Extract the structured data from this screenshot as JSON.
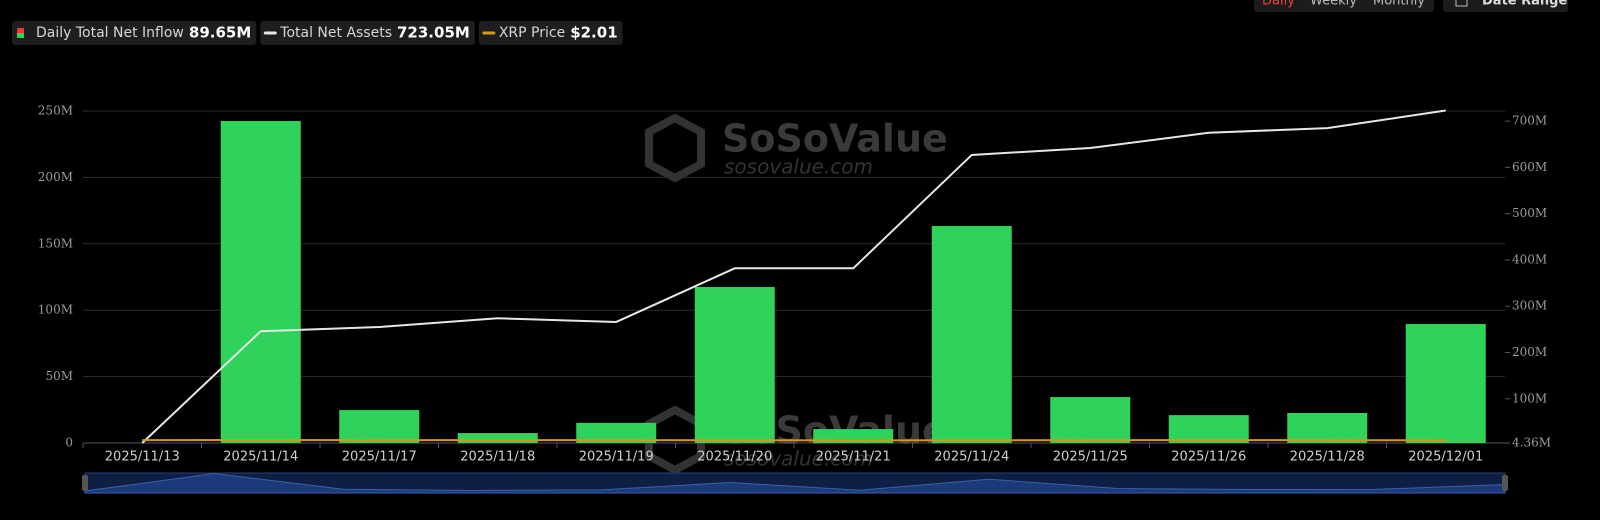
{
  "controls": {
    "periods": [
      "Daily",
      "Weekly",
      "Monthly"
    ],
    "active_period": "Daily",
    "date_range": "Date Range"
  },
  "watermark": {
    "brand": "SoSoValue",
    "url": "sosovalue.com"
  },
  "chart_data": {
    "type": "bar",
    "categories": [
      "2025/11/13",
      "2025/11/14",
      "2025/11/17",
      "2025/11/18",
      "2025/11/19",
      "2025/11/20",
      "2025/11/21",
      "2025/11/24",
      "2025/11/25",
      "2025/11/26",
      "2025/11/28",
      "2025/12/01"
    ],
    "series": [
      {
        "name": "Daily Total Net Inflow",
        "summary": "89.65M",
        "type": "bar",
        "color": "#2fd25a",
        "values": [
          0,
          242.5,
          24.8,
          7.5,
          15.2,
          117.5,
          10.5,
          163.4,
          34.6,
          21,
          22.6,
          89.65
        ]
      },
      {
        "name": "Total Net Assets",
        "summary": "723.05M",
        "type": "line",
        "axis": "y2",
        "color": "#e6e6e6",
        "values": [
          4.36,
          246,
          255,
          274,
          266,
          382,
          382,
          627,
          642,
          675,
          685,
          723.05
        ]
      },
      {
        "name": "XRP Price",
        "summary": "$2.01",
        "type": "line",
        "color": "#d8961a",
        "values": [
          2.2,
          2.3,
          2.15,
          2.2,
          2.2,
          2.1,
          2.0,
          2.05,
          2.2,
          2.2,
          2.15,
          2.01
        ]
      }
    ],
    "ylim": [
      0,
      250
    ],
    "yticks": [
      {
        "value": 0,
        "label": "0"
      },
      {
        "value": 50,
        "label": "50M"
      },
      {
        "value": 100,
        "label": "100M"
      },
      {
        "value": 150,
        "label": "150M"
      },
      {
        "value": 200,
        "label": "200M"
      },
      {
        "value": 250,
        "label": "250M"
      }
    ],
    "y2lim": [
      4.36,
      722
    ],
    "y2ticks": [
      {
        "value": 4.36,
        "label": "4.36M"
      },
      {
        "value": 100,
        "label": "100M"
      },
      {
        "value": 200,
        "label": "200M"
      },
      {
        "value": 300,
        "label": "300M"
      },
      {
        "value": 400,
        "label": "400M"
      },
      {
        "value": 500,
        "label": "500M"
      },
      {
        "value": 600,
        "label": "600M"
      },
      {
        "value": 700,
        "label": "700M"
      }
    ],
    "grid": true
  }
}
